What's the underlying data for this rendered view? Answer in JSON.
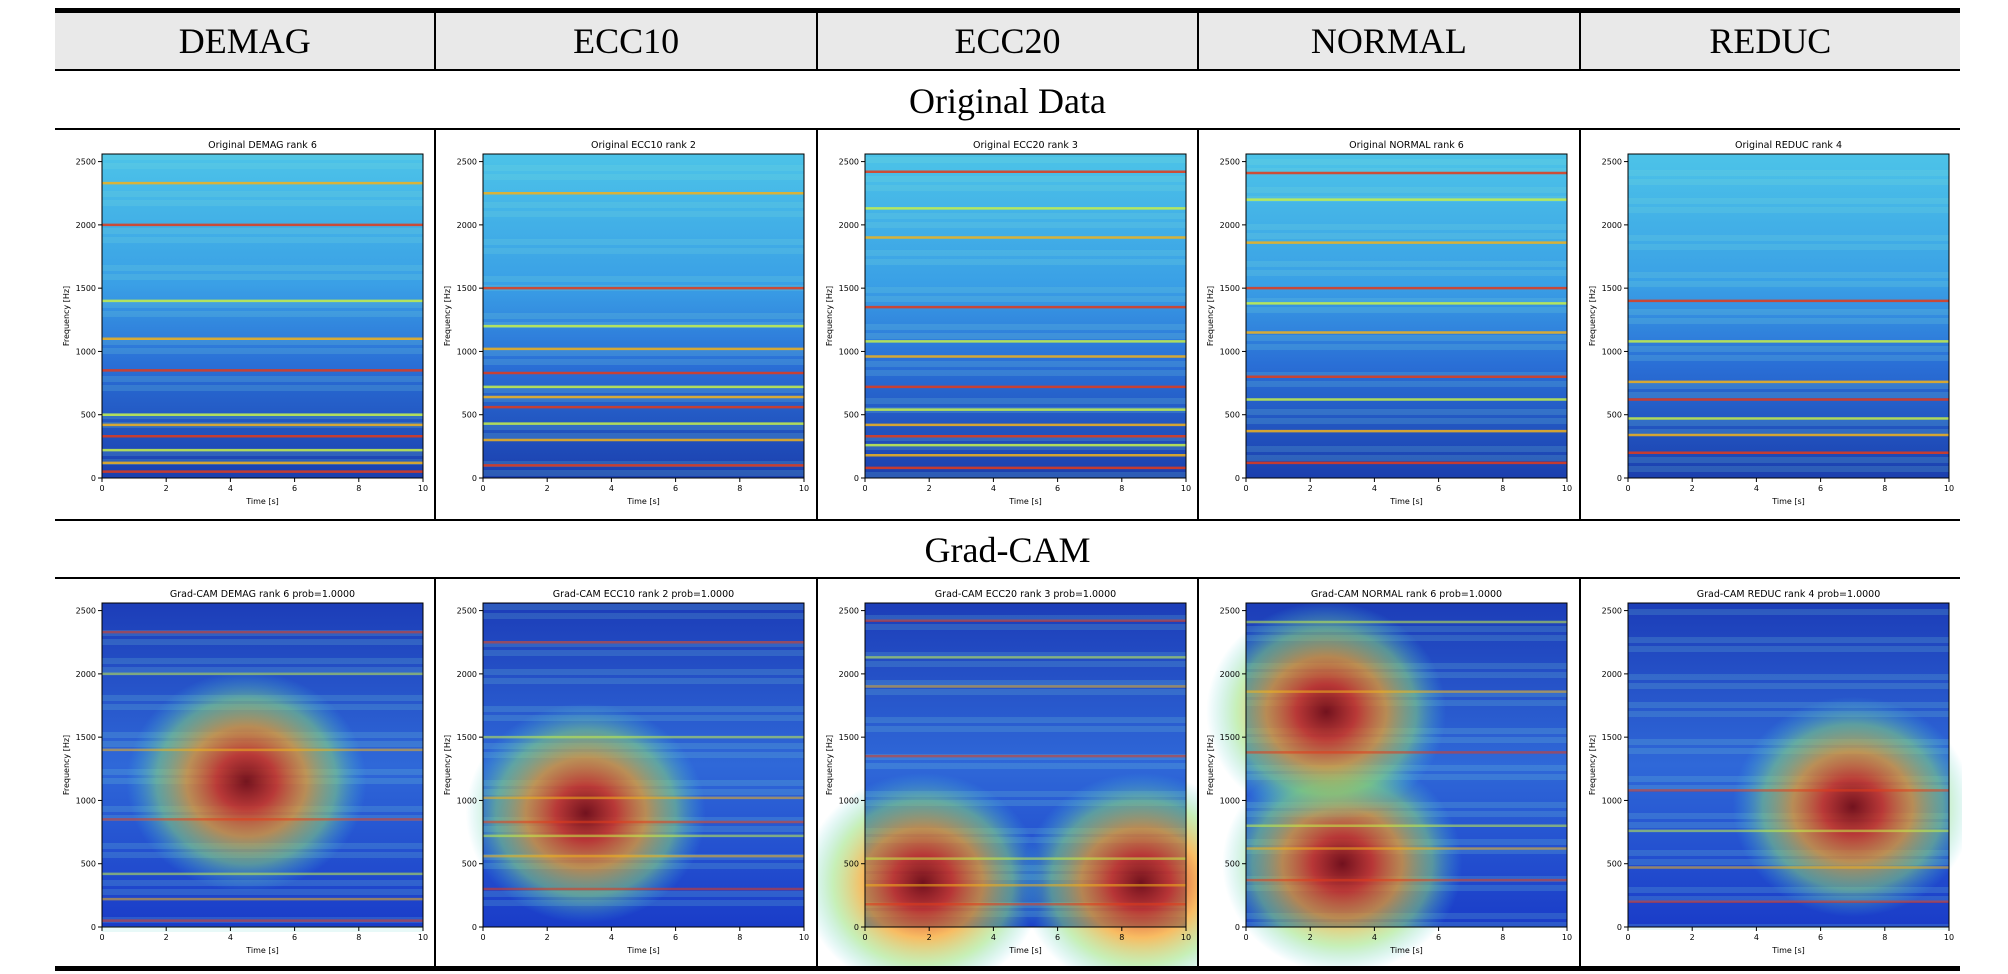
{
  "table": {
    "columns": [
      "DEMAG",
      "ECC10",
      "ECC20",
      "NORMAL",
      "REDUC"
    ],
    "sections": [
      {
        "title": "Original Data",
        "panels": [
          {
            "title": "Original DEMAG rank 6"
          },
          {
            "title": "Original ECC10 rank 2"
          },
          {
            "title": "Original ECC20 rank 3"
          },
          {
            "title": "Original NORMAL rank 6"
          },
          {
            "title": "Original REDUC rank 4"
          }
        ]
      },
      {
        "title": "Grad-CAM",
        "panels": [
          {
            "title": "Grad-CAM DEMAG rank 6 prob=1.0000"
          },
          {
            "title": "Grad-CAM ECC10 rank 2 prob=1.0000"
          },
          {
            "title": "Grad-CAM ECC20 rank 3 prob=1.0000"
          },
          {
            "title": "Grad-CAM NORMAL rank 6 prob=1.0000"
          },
          {
            "title": "Grad-CAM REDUC rank 4 prob=1.0000"
          }
        ]
      }
    ]
  },
  "axes": {
    "xlabel": "Time [s]",
    "ylabel": "Frequency [Hz]",
    "x_ticks": [
      "0",
      "2",
      "4",
      "6",
      "8",
      "10"
    ],
    "y_ticks": [
      "0",
      "500",
      "1000",
      "1500",
      "2000",
      "2500"
    ],
    "xlim": [
      0,
      10
    ],
    "ylim": [
      0,
      2560
    ]
  },
  "chart_data": [
    {
      "type": "heatmap",
      "title": "Original DEMAG rank 6",
      "xlabel": "Time [s]",
      "ylabel": "Frequency [Hz]",
      "xlim": [
        0,
        10
      ],
      "ylim": [
        0,
        2560
      ],
      "colormap": "jet",
      "lines_hz": [
        50,
        120,
        220,
        330,
        420,
        500,
        850,
        1100,
        1400,
        2000,
        2330
      ],
      "cam_centers": []
    },
    {
      "type": "heatmap",
      "title": "Original ECC10 rank 2",
      "xlabel": "Time [s]",
      "ylabel": "Frequency [Hz]",
      "xlim": [
        0,
        10
      ],
      "ylim": [
        0,
        2560
      ],
      "colormap": "jet",
      "lines_hz": [
        100,
        300,
        430,
        560,
        640,
        720,
        830,
        1020,
        1200,
        1500,
        2250
      ],
      "cam_centers": []
    },
    {
      "type": "heatmap",
      "title": "Original ECC20 rank 3",
      "xlabel": "Time [s]",
      "ylabel": "Frequency [Hz]",
      "xlim": [
        0,
        10
      ],
      "ylim": [
        0,
        2560
      ],
      "colormap": "jet",
      "lines_hz": [
        80,
        180,
        260,
        330,
        420,
        540,
        720,
        960,
        1080,
        1350,
        1900,
        2130,
        2420
      ],
      "cam_centers": []
    },
    {
      "type": "heatmap",
      "title": "Original NORMAL rank 6",
      "xlabel": "Time [s]",
      "ylabel": "Frequency [Hz]",
      "xlim": [
        0,
        10
      ],
      "ylim": [
        0,
        2560
      ],
      "colormap": "jet",
      "lines_hz": [
        120,
        370,
        620,
        800,
        1150,
        1380,
        1500,
        1860,
        2200,
        2410
      ],
      "cam_centers": []
    },
    {
      "type": "heatmap",
      "title": "Original REDUC rank 4",
      "xlabel": "Time [s]",
      "ylabel": "Frequency [Hz]",
      "xlim": [
        0,
        10
      ],
      "ylim": [
        0,
        2560
      ],
      "colormap": "jet",
      "lines_hz": [
        200,
        340,
        470,
        620,
        760,
        1080,
        1400
      ],
      "cam_centers": []
    },
    {
      "type": "heatmap",
      "title": "Grad-CAM DEMAG rank 6 prob=1.0000",
      "xlabel": "Time [s]",
      "ylabel": "Frequency [Hz]",
      "xlim": [
        0,
        10
      ],
      "ylim": [
        0,
        2560
      ],
      "colormap": "jet",
      "lines_hz": [
        50,
        220,
        420,
        850,
        1400,
        2000,
        2330
      ],
      "cam_centers": [
        {
          "t": 4.5,
          "f": 1150
        }
      ]
    },
    {
      "type": "heatmap",
      "title": "Grad-CAM ECC10 rank 2 prob=1.0000",
      "xlabel": "Time [s]",
      "ylabel": "Frequency [Hz]",
      "xlim": [
        0,
        10
      ],
      "ylim": [
        0,
        2560
      ],
      "colormap": "jet",
      "lines_hz": [
        300,
        560,
        720,
        830,
        1020,
        1500,
        2250
      ],
      "cam_centers": [
        {
          "t": 3.2,
          "f": 900
        }
      ]
    },
    {
      "type": "heatmap",
      "title": "Grad-CAM ECC20 rank 3 prob=1.0000",
      "xlabel": "Time [s]",
      "ylabel": "Frequency [Hz]",
      "xlim": [
        0,
        10
      ],
      "ylim": [
        0,
        2560
      ],
      "colormap": "jet",
      "lines_hz": [
        180,
        330,
        540,
        1350,
        1900,
        2130,
        2420
      ],
      "cam_centers": [
        {
          "t": 1.8,
          "f": 350
        },
        {
          "t": 8.6,
          "f": 350
        }
      ]
    },
    {
      "type": "heatmap",
      "title": "Grad-CAM NORMAL rank 6 prob=1.0000",
      "xlabel": "Time [s]",
      "ylabel": "Frequency [Hz]",
      "xlim": [
        0,
        10
      ],
      "ylim": [
        0,
        2560
      ],
      "colormap": "jet",
      "lines_hz": [
        370,
        620,
        800,
        1380,
        1860,
        2410
      ],
      "cam_centers": [
        {
          "t": 3.0,
          "f": 500
        },
        {
          "t": 2.5,
          "f": 1700
        }
      ]
    },
    {
      "type": "heatmap",
      "title": "Grad-CAM REDUC rank 4 prob=1.0000",
      "xlabel": "Time [s]",
      "ylabel": "Frequency [Hz]",
      "xlim": [
        0,
        10
      ],
      "ylim": [
        0,
        2560
      ],
      "colormap": "jet",
      "lines_hz": [
        200,
        470,
        760,
        1080
      ],
      "cam_centers": [
        {
          "t": 7.0,
          "f": 950
        }
      ]
    }
  ]
}
